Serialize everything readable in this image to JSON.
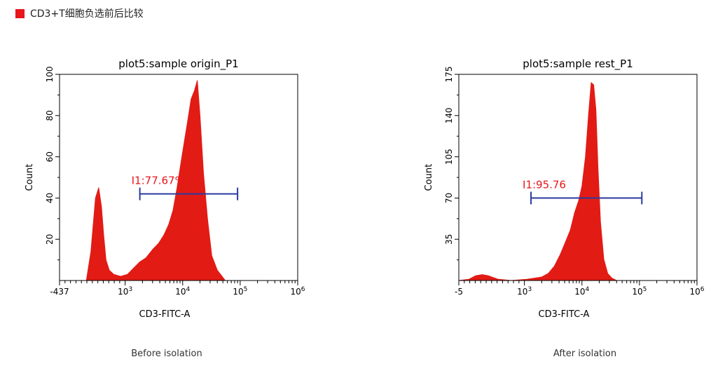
{
  "header": {
    "title": "CD3+T细胞负选前后比较"
  },
  "captions": {
    "left": "Before isolation",
    "right": "After isolation"
  },
  "colors": {
    "accent": "#e8151b",
    "fill": "#e31b15",
    "gate": "#2b3aa0",
    "gate_label": "#e8151b"
  },
  "chart_data": [
    {
      "type": "area",
      "title": "plot5:sample origin_P1",
      "xlabel": "CD3-FITC-A",
      "ylabel": "Count",
      "x_scale": "biexponential",
      "xlim": [
        -437,
        1000000
      ],
      "ylim": [
        0,
        100
      ],
      "x_ticks": [
        "-437",
        "10^3",
        "10^4",
        "10^5",
        "10^6"
      ],
      "y_ticks": [
        "20",
        "40",
        "60",
        "80",
        "100"
      ],
      "series": [
        {
          "x": [
            -437,
            150,
            250,
            350,
            420,
            480,
            530,
            580,
            650,
            750,
            900,
            1100,
            1400,
            1800,
            2300,
            3000,
            3800,
            4700,
            5700,
            6800,
            8000,
            9200,
            10500,
            12000,
            14000,
            16000,
            18000,
            20000,
            23000,
            27000,
            32000,
            40000,
            55000
          ],
          "y": [
            0,
            0,
            14,
            40,
            45,
            36,
            22,
            10,
            5,
            3,
            2,
            3,
            6,
            9,
            11,
            15,
            18,
            22,
            27,
            34,
            45,
            56,
            66,
            76,
            88,
            92,
            97,
            80,
            52,
            30,
            12,
            5,
            0
          ]
        }
      ],
      "gate": {
        "label": "I1:77.67%",
        "from": 1800,
        "to": 90000,
        "level": 42
      }
    },
    {
      "type": "area",
      "title": "plot5:sample rest_P1",
      "xlabel": "CD3-FITC-A",
      "ylabel": "Count",
      "x_scale": "biexponential",
      "xlim": [
        -5,
        1000000
      ],
      "ylim": [
        0,
        175
      ],
      "x_ticks": [
        "-5",
        "10^3",
        "10^4",
        "10^5",
        "10^6"
      ],
      "y_ticks": [
        "35",
        "70",
        "105",
        "140",
        "175"
      ],
      "series": [
        {
          "x": [
            -5,
            150,
            250,
            350,
            450,
            600,
            800,
            1100,
            1500,
            2000,
            2600,
            3300,
            4200,
            5200,
            6300,
            7500,
            8800,
            10000,
            11500,
            13000,
            14500,
            16000,
            17500,
            19000,
            21000,
            24000,
            28000,
            33000,
            40000
          ],
          "y": [
            0,
            1,
            4,
            5,
            4,
            1,
            0,
            1,
            2,
            3,
            6,
            12,
            22,
            33,
            43,
            58,
            68,
            80,
            105,
            140,
            168,
            166,
            145,
            95,
            50,
            18,
            6,
            2,
            0
          ]
        }
      ],
      "gate": {
        "label": "I1:95.76",
        "from": 1300,
        "to": 110000,
        "level": 70
      }
    }
  ]
}
